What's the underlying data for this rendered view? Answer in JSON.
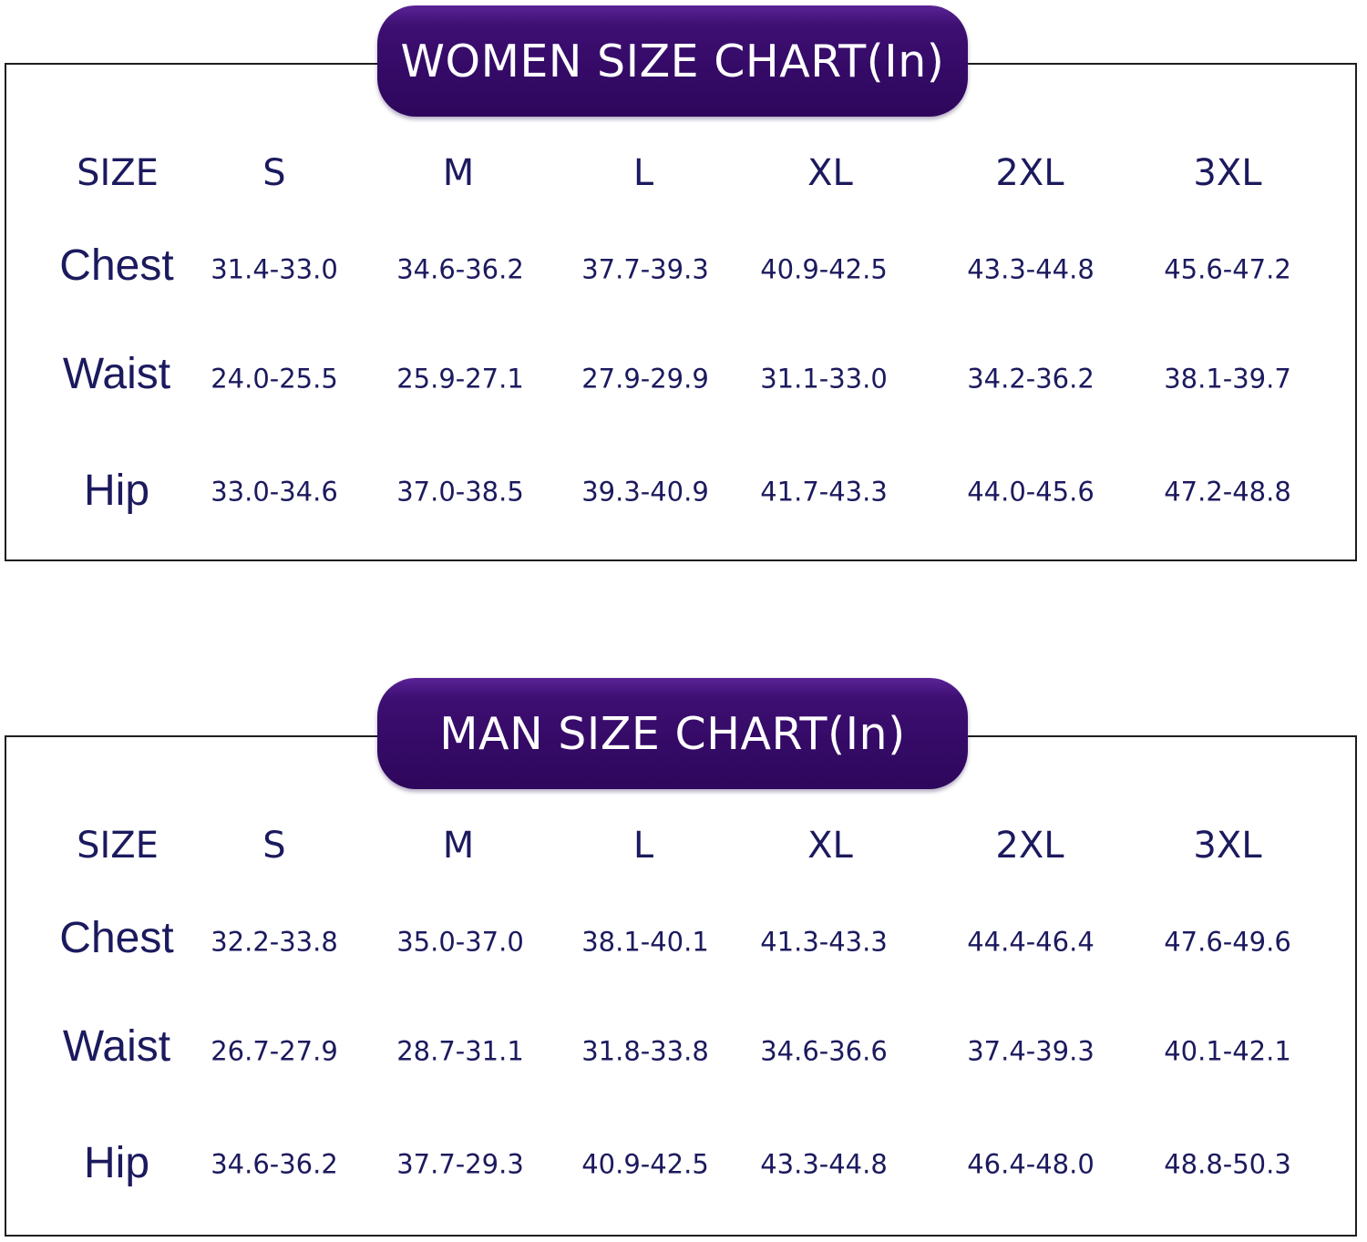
{
  "charts": [
    {
      "title": "WOMEN SIZE CHART(In)",
      "header": [
        "SIZE",
        "S",
        "M",
        "L",
        "XL",
        "2XL",
        "3XL"
      ],
      "rows": [
        {
          "label": "Chest",
          "values": [
            "31.4-33.0",
            "34.6-36.2",
            "37.7-39.3",
            "40.9-42.5",
            "43.3-44.8",
            "45.6-47.2"
          ]
        },
        {
          "label": "Waist",
          "values": [
            "24.0-25.5",
            "25.9-27.1",
            "27.9-29.9",
            "31.1-33.0",
            "34.2-36.2",
            "38.1-39.7"
          ]
        },
        {
          "label": "Hip",
          "values": [
            "33.0-34.6",
            "37.0-38.5",
            "39.3-40.9",
            "41.7-43.3",
            "44.0-45.6",
            "47.2-48.8"
          ]
        }
      ]
    },
    {
      "title": "MAN SIZE CHART(In)",
      "header": [
        "SIZE",
        "S",
        "M",
        "L",
        "XL",
        "2XL",
        "3XL"
      ],
      "rows": [
        {
          "label": "Chest",
          "values": [
            "32.2-33.8",
            "35.0-37.0",
            "38.1-40.1",
            "41.3-43.3",
            "44.4-46.4",
            "47.6-49.6"
          ]
        },
        {
          "label": "Waist",
          "values": [
            "26.7-27.9",
            "28.7-31.1",
            "31.8-33.8",
            "34.6-36.6",
            "37.4-39.3",
            "40.1-42.1"
          ]
        },
        {
          "label": "Hip",
          "values": [
            "34.6-36.2",
            "37.7-29.3",
            "40.9-42.5",
            "43.3-44.8",
            "46.4-48.0",
            "48.8-50.3"
          ]
        }
      ]
    }
  ],
  "colors": {
    "title_bg": "#340a66",
    "title_text": "#ffffff",
    "table_text": "#1c1a5e",
    "frame": "#1e1e1e"
  }
}
